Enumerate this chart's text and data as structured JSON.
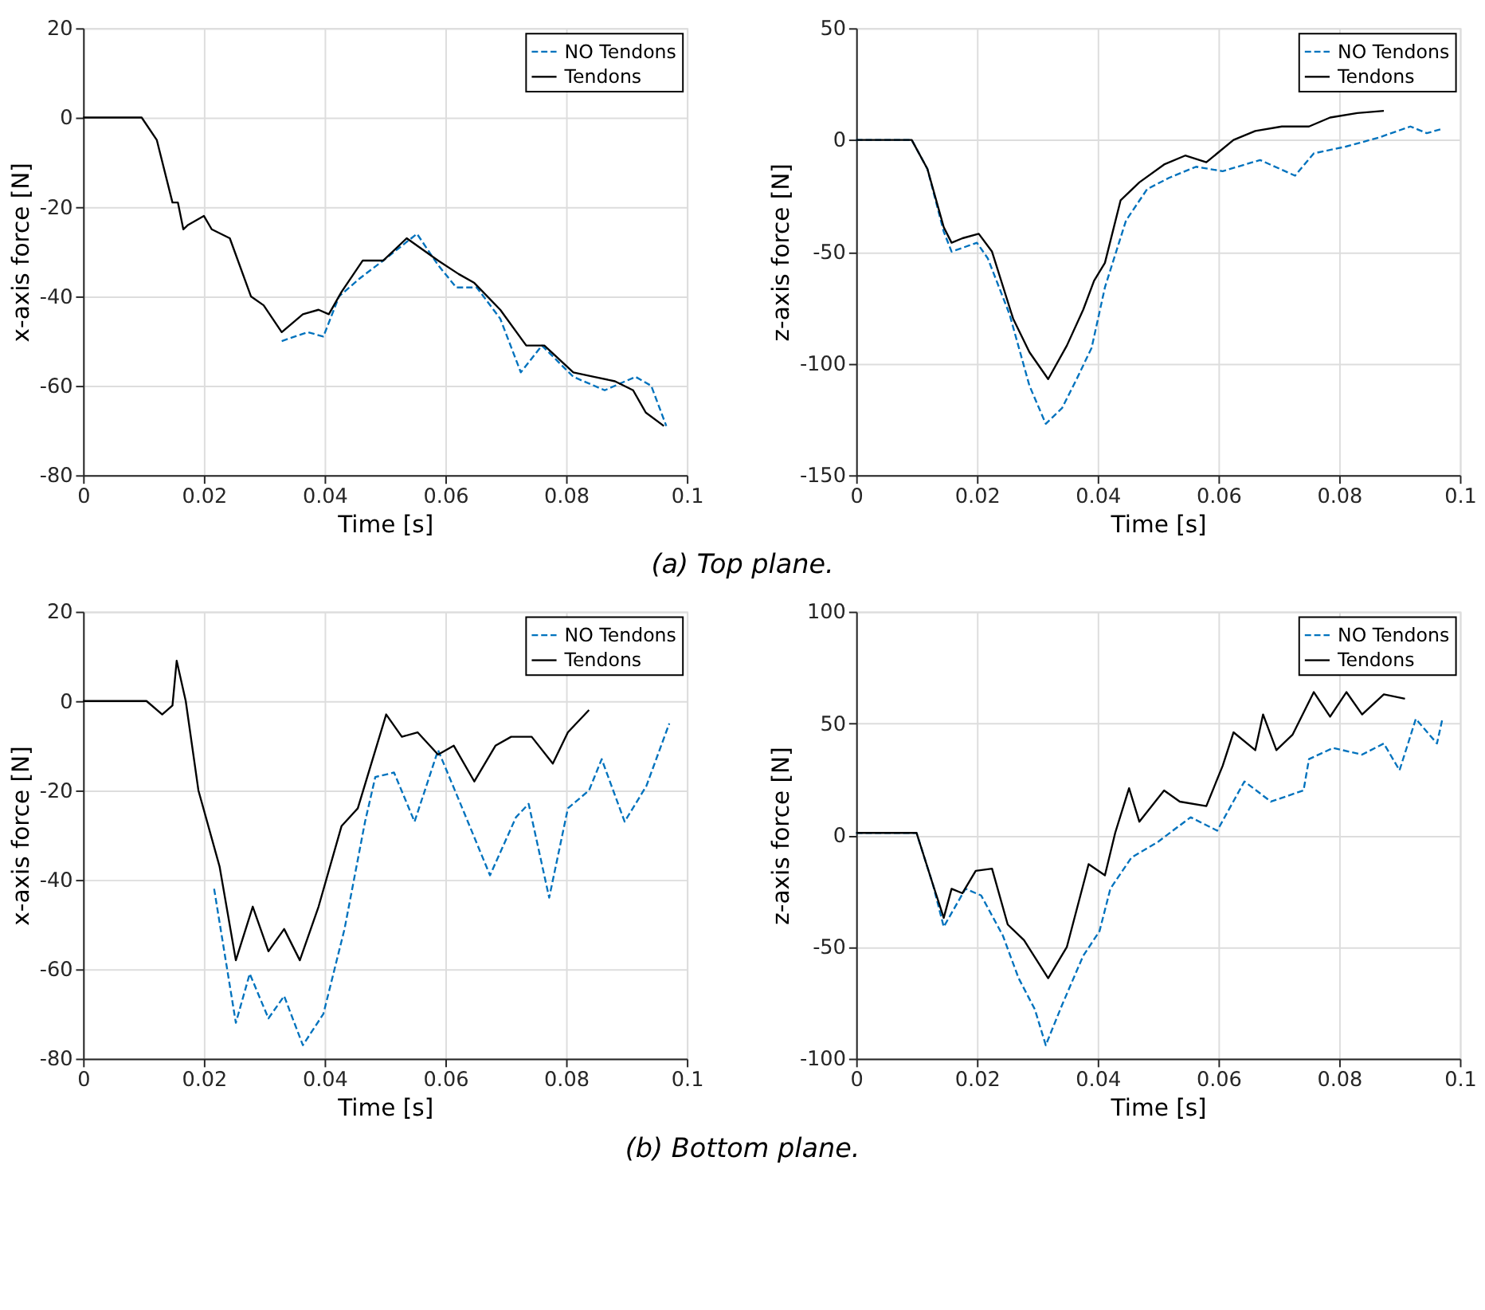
{
  "chart_data": [
    {
      "type": "line",
      "xlabel": "Time [s]",
      "ylabel": "x-axis force [N]",
      "xlim": [
        0,
        0.1
      ],
      "xticks": [
        0,
        0.02,
        0.04,
        0.06,
        0.08,
        0.1
      ],
      "ylim": [
        -80,
        20
      ],
      "yticks": [
        -80,
        -60,
        -40,
        -20,
        0,
        20
      ],
      "grid": true,
      "legend": "top right",
      "annotations": [
        "(a) Top plane."
      ],
      "series": [
        {
          "name": "NO Tendons",
          "color": "#0072bd",
          "line_style": "dashed",
          "x": [
            0.0329,
            0.0372,
            0.0398,
            0.0424,
            0.0458,
            0.0497,
            0.0553,
            0.0588,
            0.0618,
            0.0652,
            0.0691,
            0.0725,
            0.076,
            0.0812,
            0.0864,
            0.0915,
            0.0941,
            0.0966
          ],
          "values": [
            -50,
            -48,
            -49,
            -40,
            -36,
            -32,
            -26,
            -33,
            -38,
            -38,
            -45,
            -57,
            -51,
            -58,
            -61,
            -58,
            -60,
            -69
          ]
        },
        {
          "name": "Tendons",
          "color": "#000000",
          "line_style": "solid",
          "x": [
            0,
            0.0097,
            0.0122,
            0.0148,
            0.0157,
            0.0166,
            0.0174,
            0.02,
            0.0213,
            0.0243,
            0.0278,
            0.0299,
            0.0329,
            0.0364,
            0.039,
            0.0407,
            0.0428,
            0.0463,
            0.0497,
            0.0536,
            0.0588,
            0.0622,
            0.0648,
            0.0691,
            0.0734,
            0.0764,
            0.0812,
            0.0846,
            0.0881,
            0.0911,
            0.0932,
            0.0962
          ],
          "values": [
            0,
            0,
            -5,
            -19,
            -19,
            -25,
            -24,
            -22,
            -25,
            -27,
            -40,
            -42,
            -48,
            -44,
            -43,
            -44,
            -39,
            -32,
            -32,
            -27,
            -32,
            -35,
            -37,
            -43,
            -51,
            -51,
            -57,
            -58,
            -59,
            -61,
            -66,
            -69
          ]
        }
      ]
    },
    {
      "type": "line",
      "xlabel": "Time [s]",
      "ylabel": "z-axis force [N]",
      "xlim": [
        0,
        0.1
      ],
      "xticks": [
        0,
        0.02,
        0.04,
        0.06,
        0.08,
        0.1
      ],
      "ylim": [
        -150,
        50
      ],
      "yticks": [
        -150,
        -100,
        -50,
        0,
        50
      ],
      "grid": true,
      "legend": "top right",
      "series": [
        {
          "name": "NO Tendons",
          "color": "#0072bd",
          "line_style": "dashed",
          "x": [
            0,
            0.0092,
            0.0118,
            0.0145,
            0.0158,
            0.02,
            0.0218,
            0.0254,
            0.0287,
            0.0314,
            0.0341,
            0.0367,
            0.039,
            0.0412,
            0.0447,
            0.0482,
            0.0518,
            0.0563,
            0.0607,
            0.0669,
            0.0727,
            0.0758,
            0.0811,
            0.0865,
            0.0918,
            0.0945,
            0.0971
          ],
          "values": [
            0,
            0,
            -13,
            -41,
            -50,
            -46,
            -53,
            -78,
            -110,
            -127,
            -120,
            -106,
            -93,
            -66,
            -36,
            -22,
            -17,
            -12,
            -14,
            -9,
            -16,
            -6,
            -3,
            1,
            6,
            3,
            5
          ]
        },
        {
          "name": "Tendons",
          "color": "#000000",
          "line_style": "solid",
          "x": [
            0,
            0.0092,
            0.0118,
            0.0145,
            0.0158,
            0.0176,
            0.0203,
            0.0225,
            0.026,
            0.0287,
            0.0318,
            0.0349,
            0.0376,
            0.0394,
            0.0412,
            0.0438,
            0.0469,
            0.051,
            0.0545,
            0.058,
            0.0625,
            0.0661,
            0.0705,
            0.075,
            0.0785,
            0.083,
            0.0874
          ],
          "values": [
            0,
            0,
            -13,
            -39,
            -46,
            -44,
            -42,
            -50,
            -80,
            -95,
            -107,
            -92,
            -76,
            -63,
            -55,
            -27,
            -19,
            -11,
            -7,
            -10,
            0,
            4,
            6,
            6,
            10,
            12,
            13
          ]
        }
      ]
    },
    {
      "type": "line",
      "xlabel": "Time [s]",
      "ylabel": "x-axis force [N]",
      "xlim": [
        0,
        0.1
      ],
      "xticks": [
        0,
        0.02,
        0.04,
        0.06,
        0.08,
        0.1
      ],
      "ylim": [
        -80,
        20
      ],
      "yticks": [
        -80,
        -60,
        -40,
        -20,
        0,
        20
      ],
      "grid": true,
      "legend": "top right",
      "annotations": [
        "(b) Bottom plane."
      ],
      "series": [
        {
          "name": "NO Tendons",
          "color": "#0072bd",
          "line_style": "dashed",
          "x": [
            0.0217,
            0.0253,
            0.0276,
            0.0307,
            0.0333,
            0.0364,
            0.0398,
            0.0433,
            0.0467,
            0.0484,
            0.0515,
            0.0549,
            0.0588,
            0.0622,
            0.0674,
            0.0717,
            0.0738,
            0.0772,
            0.0803,
            0.0838,
            0.0859,
            0.0897,
            0.0933,
            0.0971
          ],
          "values": [
            -42,
            -72,
            -61,
            -71,
            -66,
            -77,
            -70,
            -51,
            -27,
            -17,
            -16,
            -27,
            -11,
            -22,
            -39,
            -26,
            -23,
            -44,
            -24,
            -20,
            -13,
            -27,
            -19,
            -5
          ]
        },
        {
          "name": "Tendons",
          "color": "#000000",
          "line_style": "solid",
          "x": [
            0,
            0.0105,
            0.0131,
            0.0148,
            0.0155,
            0.017,
            0.0191,
            0.0226,
            0.0253,
            0.0281,
            0.0307,
            0.0333,
            0.0359,
            0.039,
            0.0428,
            0.0455,
            0.0502,
            0.0528,
            0.0554,
            0.0588,
            0.0614,
            0.0648,
            0.0683,
            0.0709,
            0.0743,
            0.0778,
            0.0803,
            0.0838
          ],
          "values": [
            0,
            0,
            -3,
            -1,
            9,
            0,
            -20,
            -37,
            -58,
            -46,
            -56,
            -51,
            -58,
            -46,
            -28,
            -24,
            -3,
            -8,
            -7,
            -12,
            -10,
            -18,
            -10,
            -8,
            -8,
            -14,
            -7,
            -2
          ]
        }
      ]
    },
    {
      "type": "line",
      "xlabel": "Time [s]",
      "ylabel": "z-axis force [N]",
      "xlim": [
        0,
        0.1
      ],
      "xticks": [
        0,
        0.02,
        0.04,
        0.06,
        0.08,
        0.1
      ],
      "ylim": [
        -100,
        100
      ],
      "yticks": [
        -100,
        -50,
        0,
        50,
        100
      ],
      "grid": true,
      "legend": "top right",
      "series": [
        {
          "name": "NO Tendons",
          "color": "#0072bd",
          "line_style": "dashed",
          "x": [
            0,
            0.01,
            0.0127,
            0.0145,
            0.0181,
            0.0207,
            0.0243,
            0.0269,
            0.0296,
            0.0314,
            0.0341,
            0.0376,
            0.0403,
            0.0421,
            0.0456,
            0.05,
            0.0554,
            0.0598,
            0.0643,
            0.0687,
            0.0741,
            0.075,
            0.079,
            0.0838,
            0.0874,
            0.09,
            0.0927,
            0.0962,
            0.0971
          ],
          "values": [
            1,
            1,
            -22,
            -41,
            -24,
            -27,
            -45,
            -64,
            -78,
            -94,
            -76,
            -54,
            -43,
            -24,
            -10,
            -3,
            8,
            2,
            24,
            15,
            20,
            34,
            39,
            36,
            41,
            29,
            52,
            41,
            52
          ]
        },
        {
          "name": "Tendons",
          "color": "#000000",
          "line_style": "solid",
          "x": [
            0,
            0.01,
            0.0127,
            0.0145,
            0.0158,
            0.0176,
            0.0198,
            0.0225,
            0.0251,
            0.0278,
            0.0318,
            0.0349,
            0.0385,
            0.0412,
            0.0429,
            0.0452,
            0.0469,
            0.051,
            0.0536,
            0.058,
            0.0607,
            0.0625,
            0.0661,
            0.0674,
            0.0696,
            0.0723,
            0.0758,
            0.0785,
            0.0812,
            0.0838,
            0.0874,
            0.0909
          ],
          "values": [
            1,
            1,
            -22,
            -37,
            -24,
            -26,
            -16,
            -15,
            -40,
            -47,
            -64,
            -50,
            -13,
            -18,
            1,
            21,
            6,
            20,
            15,
            13,
            31,
            46,
            38,
            54,
            38,
            45,
            64,
            53,
            64,
            54,
            63,
            61
          ]
        }
      ]
    }
  ]
}
